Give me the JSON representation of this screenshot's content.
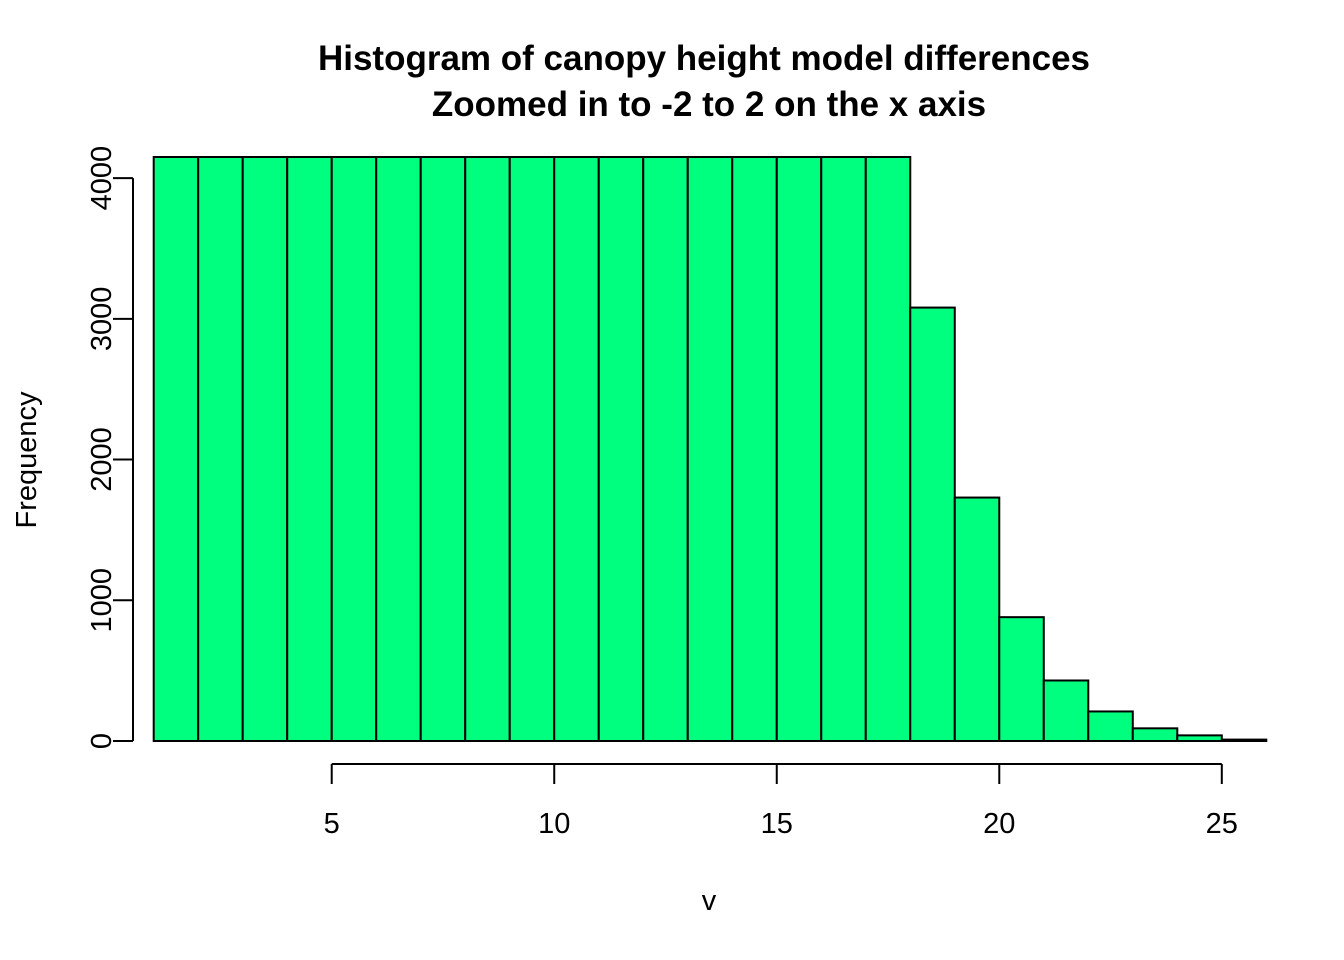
{
  "chart_data": {
    "type": "bar",
    "title_lines": [
      "Histogram of canopy height model differences",
      "Zoomed in to -2 to 2 on the x axis"
    ],
    "xlabel": "v",
    "ylabel": "Frequency",
    "xlim": [
      1,
      26
    ],
    "ylim": [
      0,
      4150
    ],
    "xticks": [
      5,
      10,
      15,
      20,
      25
    ],
    "yticks": [
      0,
      1000,
      2000,
      3000,
      4000
    ],
    "bin_edges": [
      1,
      2,
      3,
      4,
      5,
      6,
      7,
      8,
      9,
      10,
      11,
      12,
      13,
      14,
      15,
      16,
      17,
      18,
      19,
      20,
      21,
      22,
      23,
      24,
      25,
      26
    ],
    "values": [
      4150,
      4150,
      4150,
      4150,
      4150,
      4150,
      4150,
      4150,
      4150,
      4150,
      4150,
      4150,
      4150,
      4150,
      4150,
      4150,
      4150,
      3080,
      1730,
      880,
      430,
      210,
      90,
      40,
      10
    ],
    "bar_color": "#00FF7F",
    "edge_color": "#000000",
    "grid": false
  }
}
